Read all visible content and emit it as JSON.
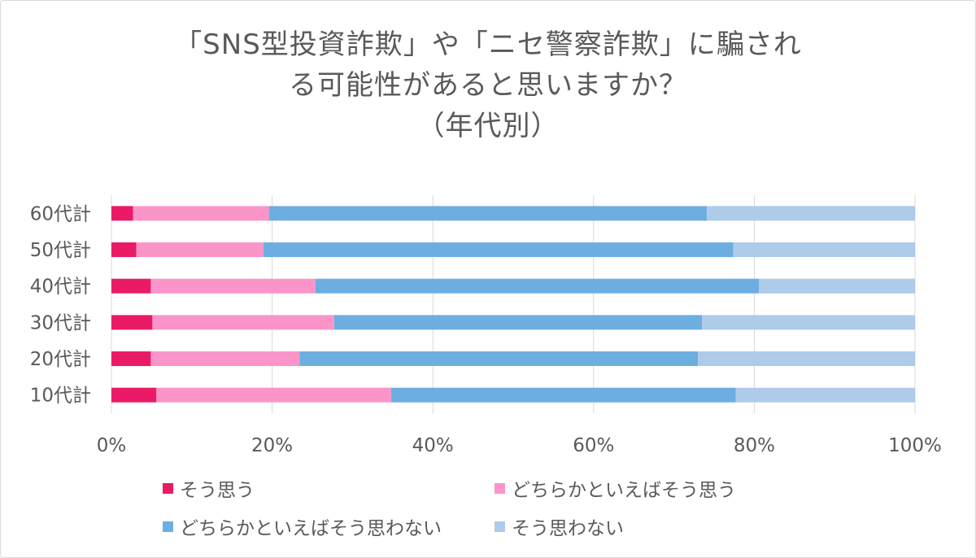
{
  "chart_data": {
    "type": "bar",
    "orientation": "horizontal",
    "stacked": "percent",
    "title_lines": [
      "「SNS型投資詐欺」や「ニセ警察詐欺」に騙され",
      "る可能性があると思いますか？",
      "（年代別）"
    ],
    "categories": [
      "60代計",
      "50代計",
      "40代計",
      "30代計",
      "20代計",
      "10代計"
    ],
    "series": [
      {
        "name": "そう思う",
        "color": "#ea1a66",
        "values": [
          2.7,
          3.1,
          4.9,
          5.1,
          4.9,
          5.6
        ]
      },
      {
        "name": "どちらかといえばそう思う",
        "color": "#fb95c9",
        "values": [
          16.9,
          15.8,
          20.5,
          22.6,
          18.5,
          29.2
        ]
      },
      {
        "name": "どちらかといえばそう思わない",
        "color": "#6daee1",
        "values": [
          54.5,
          58.5,
          55.2,
          45.8,
          49.6,
          42.9
        ]
      },
      {
        "name": "そう思わない",
        "color": "#aecbea",
        "values": [
          25.9,
          22.6,
          19.4,
          26.5,
          27.0,
          22.3
        ]
      }
    ],
    "xlim": [
      0,
      100
    ],
    "x_ticks": [
      "0%",
      "20%",
      "40%",
      "60%",
      "80%",
      "100%"
    ],
    "grid": true,
    "legend_position": "bottom"
  }
}
